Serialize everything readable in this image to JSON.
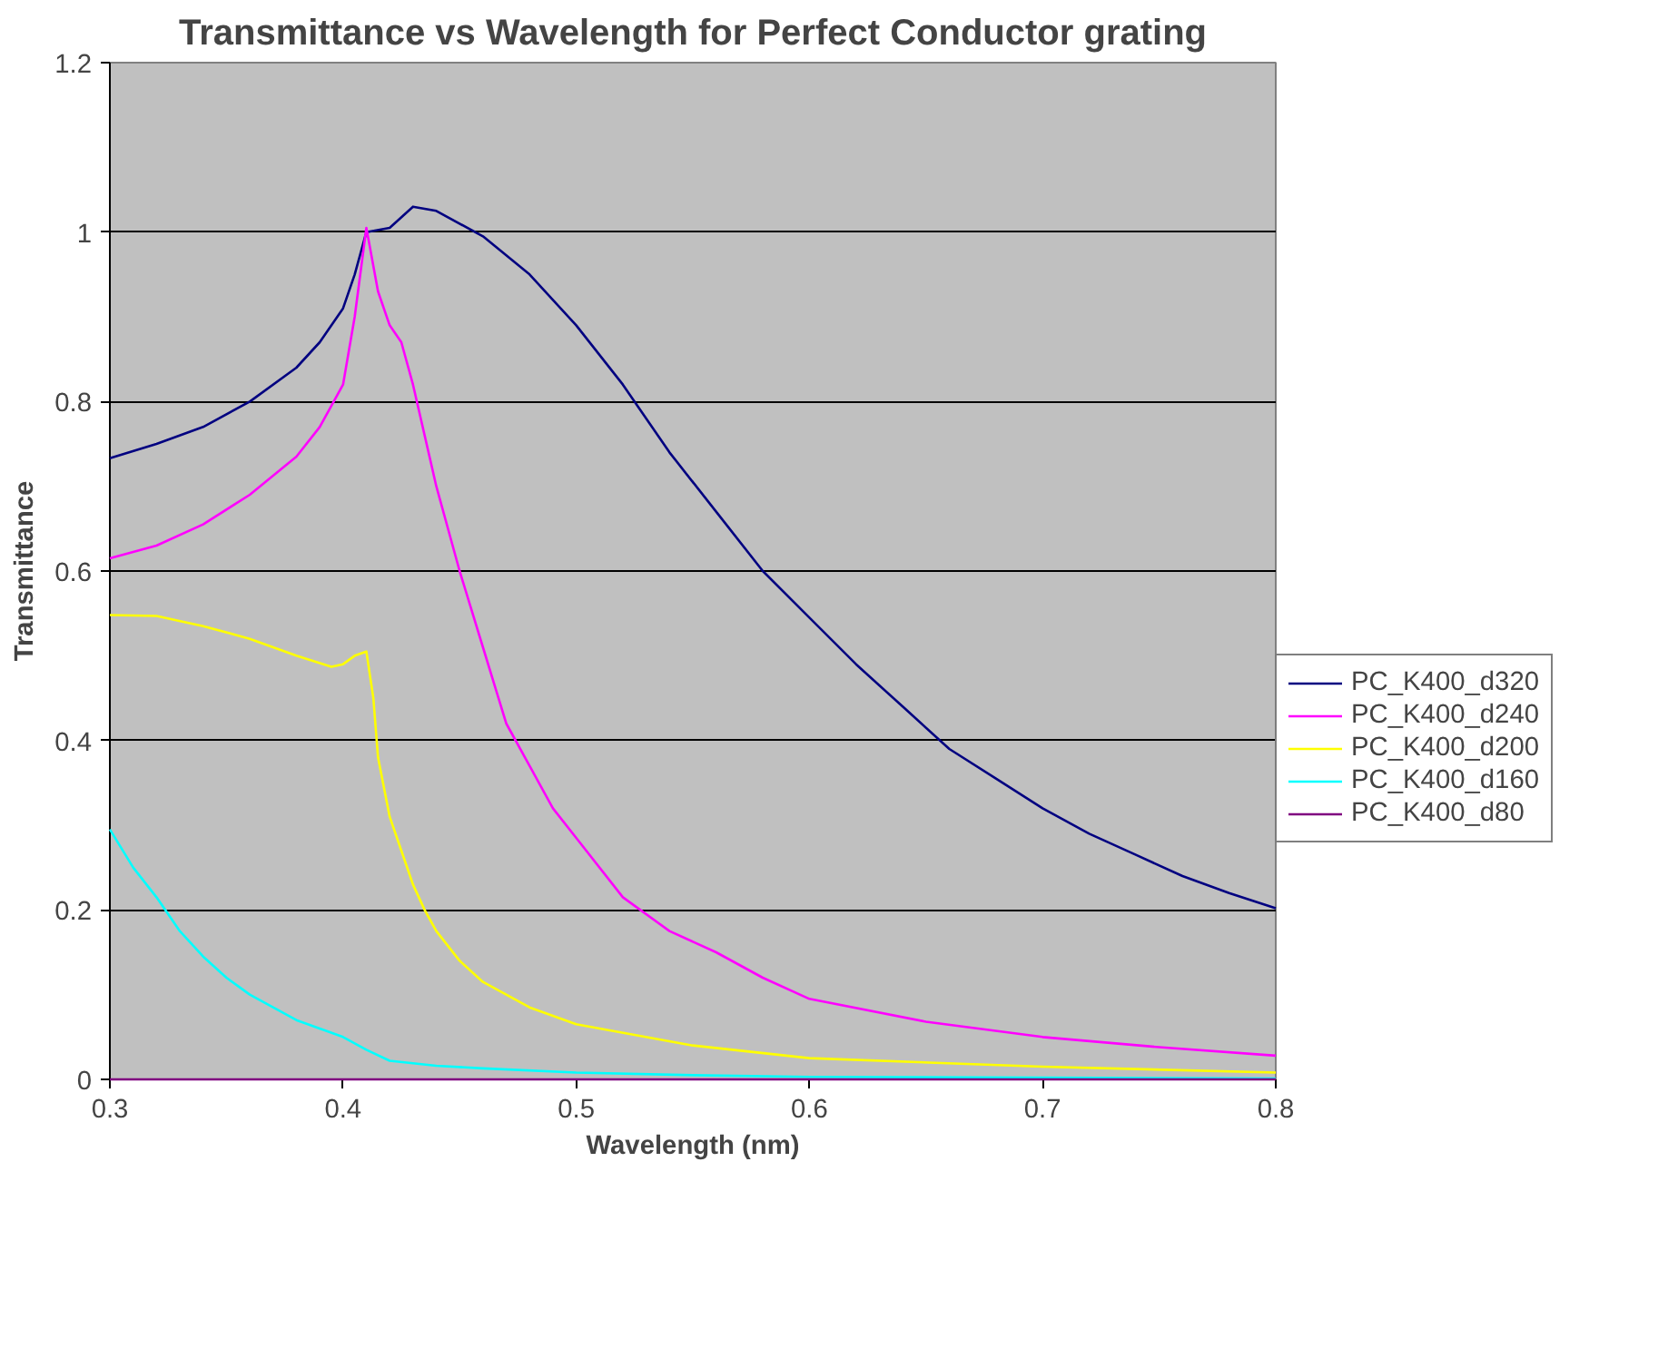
{
  "chart_data": {
    "type": "line",
    "title": "Transmittance vs Wavelength for Perfect Conductor grating",
    "xlabel": "Wavelength (nm)",
    "ylabel": "Transmittance",
    "xlim": [
      0.3,
      0.8
    ],
    "xticks": [
      0.3,
      0.4,
      0.5,
      0.6,
      0.7,
      0.8
    ],
    "ylim": [
      0,
      1.2
    ],
    "yticks": [
      0,
      0.2,
      0.4,
      0.6,
      0.8,
      1,
      1.2
    ],
    "grid": "y",
    "legend": "right",
    "line_style": "solid",
    "marker": "none",
    "series": [
      {
        "name": "PC_K400_d320",
        "color": "#000080",
        "x": [
          0.3,
          0.32,
          0.34,
          0.36,
          0.38,
          0.39,
          0.4,
          0.405,
          0.41,
          0.42,
          0.43,
          0.44,
          0.46,
          0.48,
          0.5,
          0.52,
          0.54,
          0.56,
          0.58,
          0.6,
          0.62,
          0.64,
          0.66,
          0.68,
          0.7,
          0.72,
          0.74,
          0.76,
          0.78,
          0.8
        ],
        "values": [
          0.733,
          0.75,
          0.77,
          0.8,
          0.84,
          0.87,
          0.91,
          0.95,
          1.0,
          1.005,
          1.03,
          1.025,
          0.995,
          0.95,
          0.89,
          0.82,
          0.74,
          0.67,
          0.6,
          0.545,
          0.49,
          0.44,
          0.39,
          0.355,
          0.32,
          0.29,
          0.265,
          0.24,
          0.22,
          0.202
        ]
      },
      {
        "name": "PC_K400_d240",
        "color": "#ff00ff",
        "x": [
          0.3,
          0.32,
          0.34,
          0.36,
          0.38,
          0.39,
          0.4,
          0.405,
          0.41,
          0.415,
          0.42,
          0.425,
          0.43,
          0.44,
          0.45,
          0.46,
          0.47,
          0.48,
          0.49,
          0.5,
          0.52,
          0.54,
          0.56,
          0.58,
          0.6,
          0.65,
          0.7,
          0.75,
          0.8
        ],
        "values": [
          0.615,
          0.63,
          0.655,
          0.69,
          0.735,
          0.77,
          0.82,
          0.9,
          1.005,
          0.93,
          0.89,
          0.87,
          0.82,
          0.7,
          0.6,
          0.51,
          0.42,
          0.37,
          0.32,
          0.285,
          0.215,
          0.175,
          0.15,
          0.12,
          0.095,
          0.068,
          0.05,
          0.038,
          0.028
        ]
      },
      {
        "name": "PC_K400_d200",
        "color": "#ffff00",
        "x": [
          0.3,
          0.32,
          0.34,
          0.36,
          0.38,
          0.395,
          0.4,
          0.405,
          0.41,
          0.413,
          0.415,
          0.42,
          0.425,
          0.43,
          0.435,
          0.44,
          0.45,
          0.46,
          0.48,
          0.5,
          0.55,
          0.6,
          0.7,
          0.8
        ],
        "values": [
          0.548,
          0.547,
          0.535,
          0.52,
          0.5,
          0.487,
          0.49,
          0.5,
          0.505,
          0.45,
          0.38,
          0.31,
          0.27,
          0.23,
          0.2,
          0.175,
          0.14,
          0.115,
          0.085,
          0.065,
          0.04,
          0.025,
          0.015,
          0.008
        ]
      },
      {
        "name": "PC_K400_d160",
        "color": "#00ffff",
        "x": [
          0.3,
          0.31,
          0.32,
          0.33,
          0.34,
          0.35,
          0.36,
          0.37,
          0.38,
          0.39,
          0.4,
          0.41,
          0.42,
          0.44,
          0.46,
          0.5,
          0.55,
          0.6,
          0.7,
          0.8
        ],
        "values": [
          0.295,
          0.25,
          0.215,
          0.175,
          0.145,
          0.12,
          0.1,
          0.085,
          0.07,
          0.06,
          0.05,
          0.035,
          0.022,
          0.016,
          0.013,
          0.008,
          0.005,
          0.003,
          0.002,
          0.001
        ]
      },
      {
        "name": "PC_K400_d80",
        "color": "#800080",
        "x": [
          0.3,
          0.4,
          0.5,
          0.6,
          0.7,
          0.8
        ],
        "values": [
          0,
          0,
          0,
          0,
          0,
          0
        ]
      }
    ]
  }
}
